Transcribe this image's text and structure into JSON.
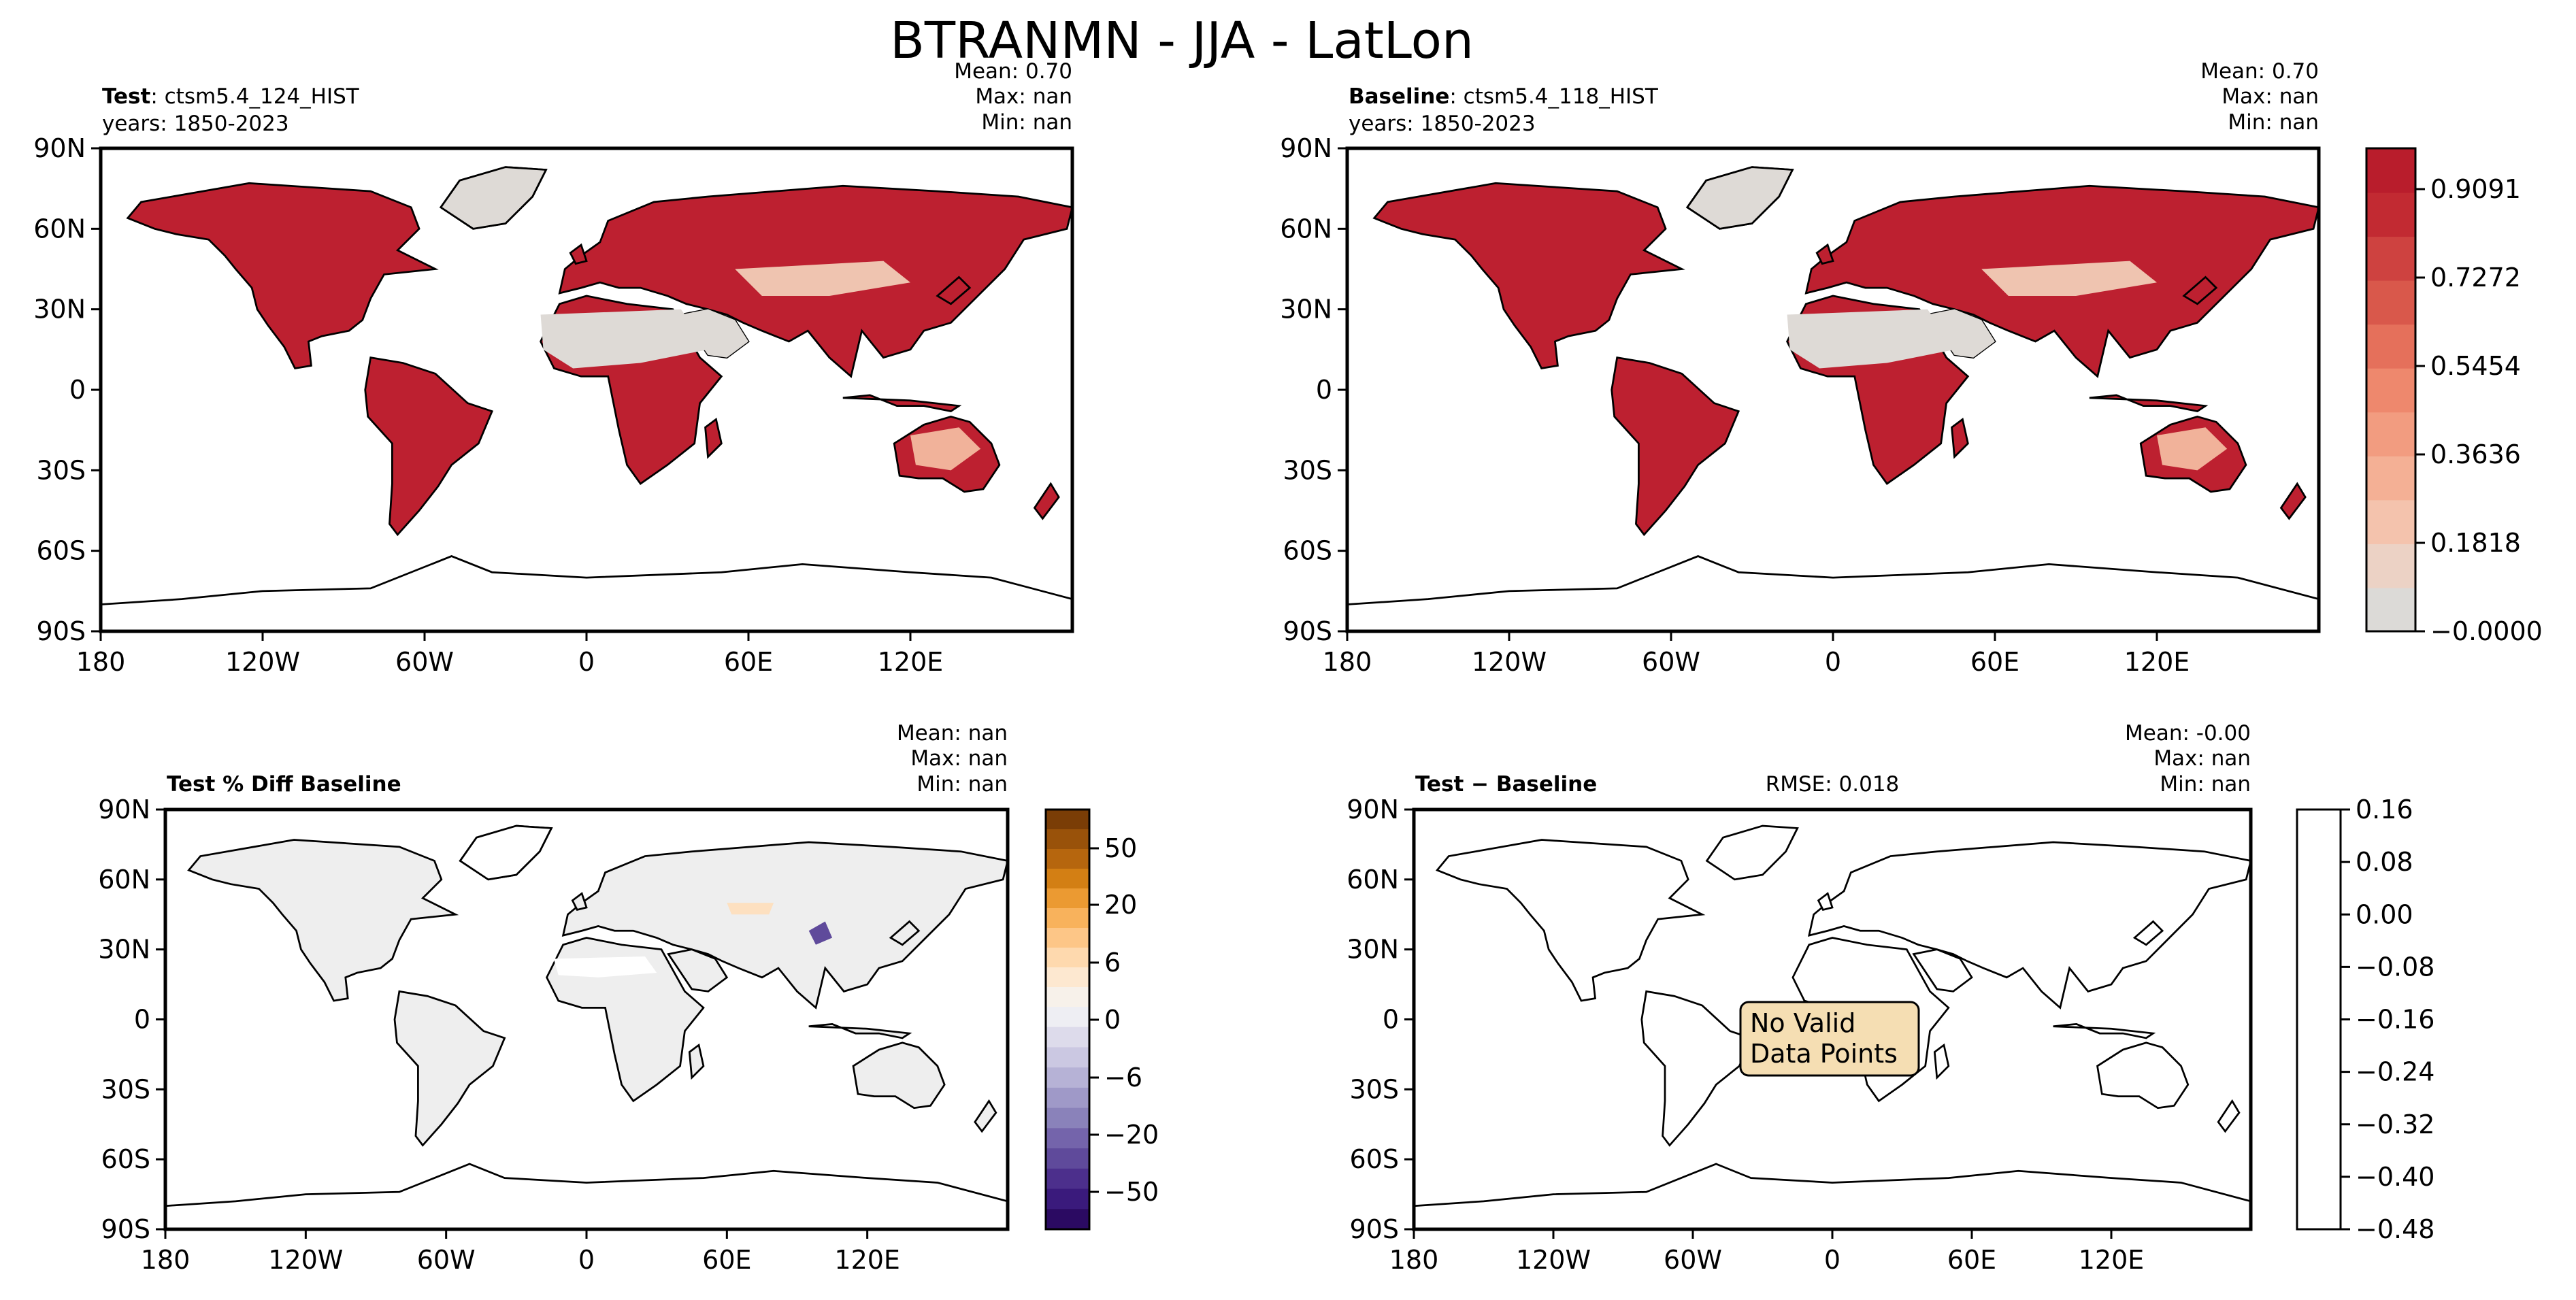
{
  "figure": {
    "title": "BTRANMN - JJA - LatLon",
    "lon_ticks": [
      "180",
      "120W",
      "60W",
      "0",
      "60E",
      "120E"
    ],
    "lat_ticks": [
      "90N",
      "60N",
      "30N",
      "0",
      "30S",
      "60S",
      "90S"
    ]
  },
  "panels": {
    "test": {
      "label_bold": "Test",
      "label_rest": ": ctsm5.4_124_HIST",
      "years": "years: 1850-2023",
      "stats": {
        "mean": "Mean:  0.70",
        "max": "Max:   nan",
        "min": "Min:   nan"
      }
    },
    "baseline": {
      "label_bold": "Baseline",
      "label_rest": ": ctsm5.4_118_HIST",
      "years": "years: 1850-2023",
      "stats": {
        "mean": "Mean:  0.70",
        "max": "Max:   nan",
        "min": "Min:   nan"
      }
    },
    "pct_diff": {
      "label_bold": "Test % Diff Baseline",
      "stats": {
        "mean": "Mean:   nan",
        "max": "Max:   nan",
        "min": "Min:   nan"
      }
    },
    "diff": {
      "label_bold": "Test − Baseline",
      "rmse": "RMSE: 0.018",
      "stats": {
        "mean": "Mean: -0.00",
        "max": "Max:   nan",
        "min": "Min:   nan"
      },
      "no_data": [
        "No Valid",
        "Data Points"
      ],
      "no_data_bg": "#f5deb3"
    }
  },
  "colorbars": {
    "main": {
      "ticks": [
        "0.9091",
        "0.7272",
        "0.5454",
        "0.3636",
        "0.1818",
        "−0.0000"
      ],
      "colors": [
        "#dcdad7",
        "#ecd2c5",
        "#f4c3ad",
        "#f4b095",
        "#f29c80",
        "#ee886d",
        "#e5705b",
        "#d9584b",
        "#ce4240",
        "#c22a32",
        "#b91d2c"
      ]
    },
    "pct": {
      "ticks": [
        "50",
        "20",
        "6",
        "0",
        "−6",
        "−20",
        "−50"
      ],
      "top_colors": [
        "#7a3d06",
        "#99520a",
        "#b6660e",
        "#d37f14",
        "#eb9a32",
        "#f8b25c",
        "#fdc687",
        "#fed9ae",
        "#fde8d0",
        "#f7f1ea"
      ],
      "bottom_colors": [
        "#eeeef3",
        "#dddbeb",
        "#cbc8e2",
        "#b6b2d6",
        "#9f99c8",
        "#8a82ba",
        "#7464ab",
        "#5f4a9b",
        "#4c2f8c",
        "#3a1a7c",
        "#2b0a62"
      ]
    },
    "diff": {
      "ticks": [
        "0.16",
        "0.08",
        "0.00",
        "−0.08",
        "−0.16",
        "−0.24",
        "−0.32",
        "−0.40",
        "−0.48"
      ]
    }
  },
  "colors": {
    "land_high": "#bd2030",
    "land_mid": "#ee8a70",
    "land_low": "#f3c4af",
    "land_bare": "#dedad6",
    "pct_land": "#eeeeee"
  }
}
